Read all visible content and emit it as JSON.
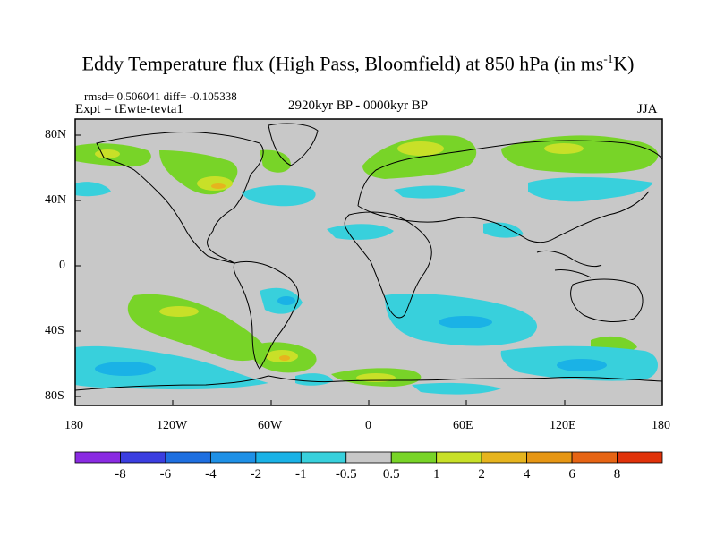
{
  "header": {
    "title_main": "Eddy Temperature flux (High Pass, Bloomfield) at 850 hPa (in ms",
    "title_sup": "-1",
    "title_end": "K)",
    "stats": "rmsd= 0.506041  diff= -0.105338",
    "experiment": "Expt = tEwte-tevta1",
    "period": "2920kyr BP - 0000kyr BP",
    "season": "JJA"
  },
  "axes": {
    "lat_ticks": [
      "80N",
      "40N",
      "0",
      "40S",
      "80S"
    ],
    "lon_ticks": [
      "180",
      "120W",
      "60W",
      "0",
      "60E",
      "120E",
      "180"
    ]
  },
  "colorbar": {
    "labels": [
      "-8",
      "-6",
      "-4",
      "-2",
      "-1",
      "-0.5",
      "0.5",
      "1",
      "2",
      "4",
      "6",
      "8"
    ],
    "colors": [
      "#8a2be2",
      "#3b3ee0",
      "#1e6fe0",
      "#1e90e6",
      "#1ab2e6",
      "#38d0dc",
      "#c8c8c8",
      "#78d428",
      "#c8e028",
      "#e6b41e",
      "#e69614",
      "#e66414",
      "#e0320a"
    ]
  },
  "map": {
    "background_color": "#c8c8c8",
    "projection": "cylindrical equidistant"
  }
}
